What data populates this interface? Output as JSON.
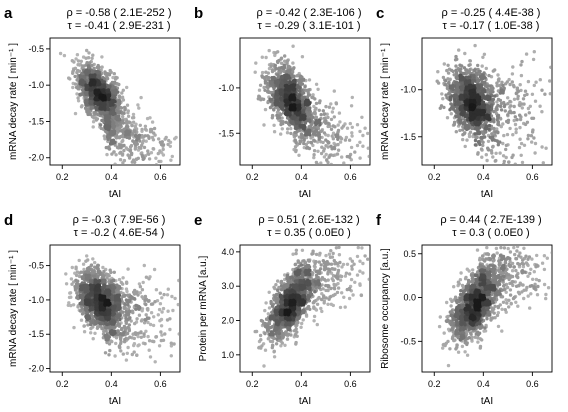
{
  "chart_data": [
    {
      "type": "scatter",
      "panel_label": "a",
      "stat_rho": "ρ = -0.58  ( 2.1E-252 )",
      "stat_tau": "τ = -0.41  ( 2.9E-231 )",
      "xlabel": "tAI",
      "ylabel": "mRNA decay rate [ min⁻¹ ]",
      "xlim": [
        0.15,
        0.68
      ],
      "ylim": [
        -2.1,
        -0.35
      ],
      "xticks": [
        {
          "v": 0.2,
          "label": "0.2"
        },
        {
          "v": 0.4,
          "label": "0.4"
        },
        {
          "v": 0.6,
          "label": "0.6"
        }
      ],
      "yticks": [
        {
          "v": -0.5,
          "label": "-0.5"
        },
        {
          "v": -1.0,
          "label": "-1.0"
        },
        {
          "v": -1.5,
          "label": "-1.5"
        },
        {
          "v": -2.0,
          "label": "-2.0"
        }
      ],
      "density": {
        "center": [
          0.35,
          -1.12
        ],
        "spread": [
          0.045,
          0.17
        ],
        "slope": -2.3,
        "tail": "decreasing",
        "tail_y": [
          -1.75,
          -1.45
        ],
        "n": 1500
      }
    },
    {
      "type": "scatter",
      "panel_label": "b",
      "stat_rho": "ρ = -0.42  ( 2.3E-106 )",
      "stat_tau": "τ = -0.29  ( 3.1E-101 )",
      "xlabel": "tAI",
      "ylabel": "",
      "xlim": [
        0.15,
        0.68
      ],
      "ylim": [
        -1.85,
        -0.45
      ],
      "xticks": [
        {
          "v": 0.2,
          "label": "0.2"
        },
        {
          "v": 0.4,
          "label": "0.4"
        },
        {
          "v": 0.6,
          "label": "0.6"
        }
      ],
      "yticks": [
        {
          "v": -1.0,
          "label": "-1.0"
        },
        {
          "v": -1.5,
          "label": "-1.5"
        }
      ],
      "density": {
        "center": [
          0.35,
          -1.12
        ],
        "spread": [
          0.045,
          0.17
        ],
        "slope": -1.8,
        "tail": "decreasing",
        "tail_y": [
          -1.45,
          -1.2
        ],
        "n": 1300
      }
    },
    {
      "type": "scatter",
      "panel_label": "c",
      "stat_rho": "ρ = -0.25  ( 4.4E-38 )",
      "stat_tau": "τ = -0.17  ( 1.0E-38 )",
      "xlabel": "tAI",
      "ylabel": "mRNA decay rate [ min⁻¹ ]",
      "xlim": [
        0.15,
        0.68
      ],
      "ylim": [
        -1.8,
        -0.45
      ],
      "xticks": [
        {
          "v": 0.2,
          "label": "0.2"
        },
        {
          "v": 0.4,
          "label": "0.4"
        },
        {
          "v": 0.6,
          "label": "0.6"
        }
      ],
      "yticks": [
        {
          "v": -1.0,
          "label": "-1.0"
        },
        {
          "v": -1.5,
          "label": "-1.5"
        }
      ],
      "density": {
        "center": [
          0.35,
          -1.12
        ],
        "spread": [
          0.045,
          0.17
        ],
        "slope": -1.2,
        "tail": "flat",
        "tail_y": [
          -1.6,
          -0.9
        ],
        "n": 1300
      }
    },
    {
      "type": "scatter",
      "panel_label": "d",
      "stat_rho": "ρ = -0.3  ( 7.9E-56 )",
      "stat_tau": "τ = -0.2  ( 4.6E-54 )",
      "xlabel": "tAI",
      "ylabel": "mRNA decay rate [ min⁻¹ ]",
      "xlim": [
        0.15,
        0.68
      ],
      "ylim": [
        -2.05,
        -0.2
      ],
      "xticks": [
        {
          "v": 0.2,
          "label": "0.2"
        },
        {
          "v": 0.4,
          "label": "0.4"
        },
        {
          "v": 0.6,
          "label": "0.6"
        }
      ],
      "yticks": [
        {
          "v": -0.5,
          "label": "-0.5"
        },
        {
          "v": -1.0,
          "label": "-1.0"
        },
        {
          "v": -1.5,
          "label": "-1.5"
        },
        {
          "v": -2.0,
          "label": "-2.0"
        }
      ],
      "density": {
        "center": [
          0.35,
          -1.0
        ],
        "spread": [
          0.045,
          0.2
        ],
        "slope": -1.5,
        "tail": "flat",
        "tail_y": [
          -1.6,
          -0.9
        ],
        "n": 1500
      }
    },
    {
      "type": "scatter",
      "panel_label": "e",
      "stat_rho": "ρ = 0.51  ( 2.6E-132 )",
      "stat_tau": "τ = 0.35  ( 0.0E0 )",
      "xlabel": "tAI",
      "ylabel": "Protein per mRNA [a.u.]",
      "xlim": [
        0.15,
        0.68
      ],
      "ylim": [
        0.5,
        4.2
      ],
      "xticks": [
        {
          "v": 0.2,
          "label": "0.2"
        },
        {
          "v": 0.4,
          "label": "0.4"
        },
        {
          "v": 0.6,
          "label": "0.6"
        }
      ],
      "yticks": [
        {
          "v": 1.0,
          "label": "1.0"
        },
        {
          "v": 2.0,
          "label": "2.0"
        },
        {
          "v": 3.0,
          "label": "3.0"
        },
        {
          "v": 4.0,
          "label": "4.0"
        }
      ],
      "density": {
        "center": [
          0.35,
          2.4
        ],
        "spread": [
          0.045,
          0.4
        ],
        "slope": 6.0,
        "tail": "increasing",
        "tail_y": [
          2.8,
          3.4
        ],
        "n": 1400
      }
    },
    {
      "type": "scatter",
      "panel_label": "f",
      "stat_rho": "ρ = 0.44  ( 2.7E-139 )",
      "stat_tau": "τ = 0.3  ( 0.0E0 )",
      "xlabel": "tAI",
      "ylabel": "Ribosome occupancy [a.u.]",
      "xlim": [
        0.15,
        0.68
      ],
      "ylim": [
        -0.85,
        0.6
      ],
      "xticks": [
        {
          "v": 0.2,
          "label": "0.2"
        },
        {
          "v": 0.4,
          "label": "0.4"
        },
        {
          "v": 0.6,
          "label": "0.6"
        }
      ],
      "yticks": [
        {
          "v": 0.5,
          "label": "0.5"
        },
        {
          "v": 0.0,
          "label": "0.0"
        },
        {
          "v": -0.5,
          "label": "-0.5"
        }
      ],
      "density": {
        "center": [
          0.36,
          -0.1
        ],
        "spread": [
          0.045,
          0.17
        ],
        "slope": 2.0,
        "tail": "increasing",
        "tail_y": [
          0.05,
          0.35
        ],
        "n": 1500
      }
    }
  ]
}
